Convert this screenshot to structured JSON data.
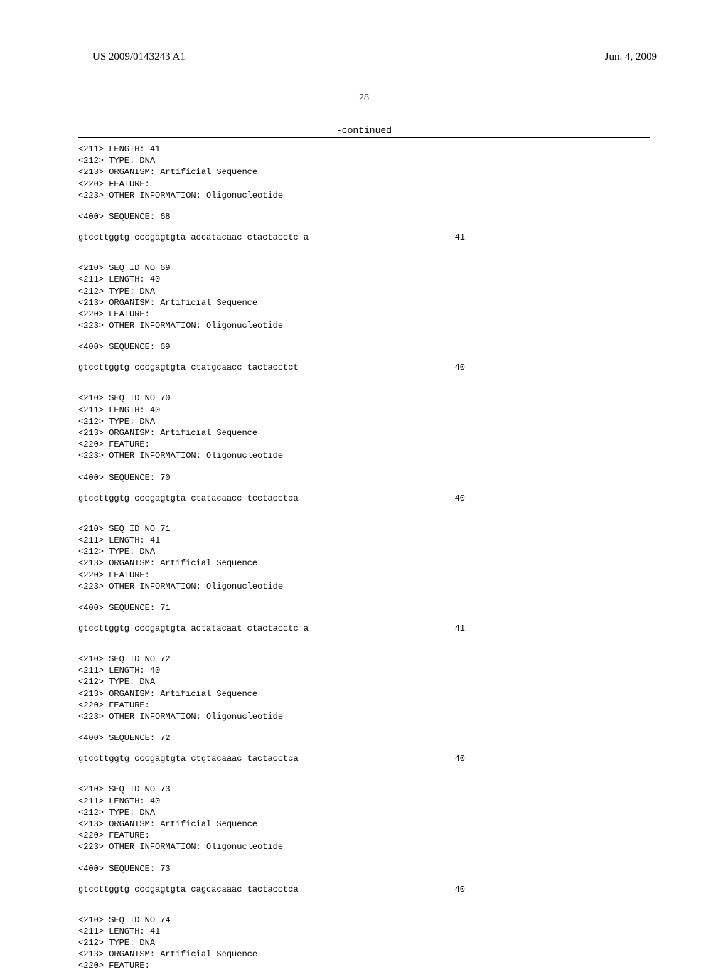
{
  "header": {
    "publication_number": "US 2009/0143243 A1",
    "date": "Jun. 4, 2009"
  },
  "page_number": "28",
  "continued_label": "-continued",
  "blocks": [
    {
      "meta": "<211> LENGTH: 41\n<212> TYPE: DNA\n<213> ORGANISM: Artificial Sequence\n<220> FEATURE:\n<223> OTHER INFORMATION: Oligonucleotide",
      "seq_header": "<400> SEQUENCE: 68",
      "sequence": "gtccttggtg cccgagtgta accatacaac ctactacctc a",
      "length": "41"
    },
    {
      "meta": "<210> SEQ ID NO 69\n<211> LENGTH: 40\n<212> TYPE: DNA\n<213> ORGANISM: Artificial Sequence\n<220> FEATURE:\n<223> OTHER INFORMATION: Oligonucleotide",
      "seq_header": "<400> SEQUENCE: 69",
      "sequence": "gtccttggtg cccgagtgta ctatgcaacc tactacctct",
      "length": "40"
    },
    {
      "meta": "<210> SEQ ID NO 70\n<211> LENGTH: 40\n<212> TYPE: DNA\n<213> ORGANISM: Artificial Sequence\n<220> FEATURE:\n<223> OTHER INFORMATION: Oligonucleotide",
      "seq_header": "<400> SEQUENCE: 70",
      "sequence": "gtccttggtg cccgagtgta ctatacaacc tcctacctca",
      "length": "40"
    },
    {
      "meta": "<210> SEQ ID NO 71\n<211> LENGTH: 41\n<212> TYPE: DNA\n<213> ORGANISM: Artificial Sequence\n<220> FEATURE:\n<223> OTHER INFORMATION: Oligonucleotide",
      "seq_header": "<400> SEQUENCE: 71",
      "sequence": "gtccttggtg cccgagtgta actatacaat ctactacctc a",
      "length": "41"
    },
    {
      "meta": "<210> SEQ ID NO 72\n<211> LENGTH: 40\n<212> TYPE: DNA\n<213> ORGANISM: Artificial Sequence\n<220> FEATURE:\n<223> OTHER INFORMATION: Oligonucleotide",
      "seq_header": "<400> SEQUENCE: 72",
      "sequence": "gtccttggtg cccgagtgta ctgtacaaac tactacctca",
      "length": "40"
    },
    {
      "meta": "<210> SEQ ID NO 73\n<211> LENGTH: 40\n<212> TYPE: DNA\n<213> ORGANISM: Artificial Sequence\n<220> FEATURE:\n<223> OTHER INFORMATION: Oligonucleotide",
      "seq_header": "<400> SEQUENCE: 73",
      "sequence": "gtccttggtg cccgagtgta cagcacaaac tactacctca",
      "length": "40"
    },
    {
      "meta": "<210> SEQ ID NO 74\n<211> LENGTH: 41\n<212> TYPE: DNA\n<213> ORGANISM: Artificial Sequence\n<220> FEATURE:",
      "seq_header": "",
      "sequence": "",
      "length": ""
    }
  ]
}
